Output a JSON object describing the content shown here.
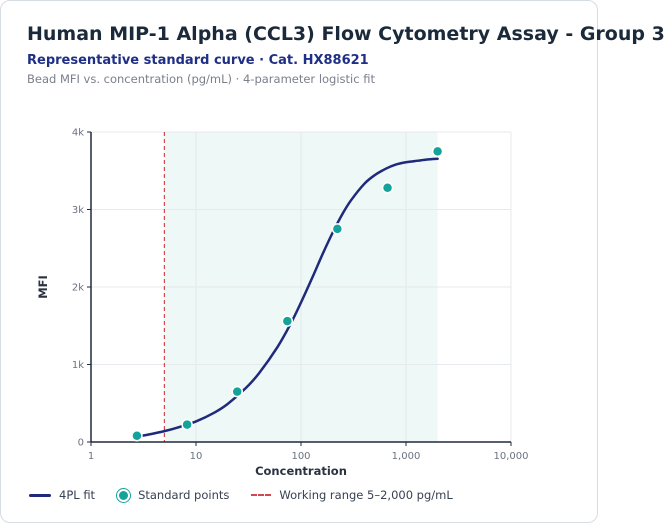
{
  "header": {
    "title": "Human MIP-1 Alpha (CCL3) Flow Cytometry Assay - Group 3",
    "subtitle": "Representative standard curve · Cat. HX88621",
    "caption": "Bead MFI vs. concentration (pg/mL) · 4-parameter logistic fit"
  },
  "colors": {
    "fit_line": "#1f2a7a",
    "points": "#14a39a",
    "working_range_marker": "#d2484e",
    "working_range_fill": "#e8f6f5"
  },
  "chart_data": {
    "type": "scatter",
    "xlabel": "Concentration",
    "ylabel": "MFI",
    "x_scale": "log",
    "xlim": [
      1,
      10000
    ],
    "ylim": [
      0,
      4000
    ],
    "x_ticks": [
      1,
      10,
      100,
      1000,
      10000
    ],
    "x_tick_labels": [
      "1",
      "10",
      "100",
      "1,000",
      "10,000"
    ],
    "y_ticks": [
      0,
      1000,
      2000,
      3000,
      4000
    ],
    "y_tick_labels": [
      "0",
      "1k",
      "2k",
      "3k",
      "4k"
    ],
    "grid": true,
    "legend_position": "bottom",
    "working_range": {
      "min": 5,
      "max": 2000
    },
    "series": [
      {
        "name": "4PL fit",
        "kind": "line",
        "x": [
          2.74,
          3.5,
          5,
          7,
          10,
          15,
          20,
          30,
          40,
          60,
          80,
          100,
          130,
          160,
          200,
          250,
          300,
          400,
          500,
          650,
          800,
          1000,
          1300,
          1600,
          2000
        ],
        "y": [
          70,
          95,
          140,
          195,
          265,
          380,
          490,
          700,
          890,
          1230,
          1530,
          1800,
          2140,
          2420,
          2700,
          2950,
          3120,
          3330,
          3440,
          3530,
          3580,
          3610,
          3630,
          3645,
          3655
        ]
      },
      {
        "name": "Standard points",
        "kind": "scatter",
        "x": [
          2.74,
          8.23,
          24.7,
          74.1,
          222,
          667,
          2000
        ],
        "y": [
          80,
          225,
          650,
          1560,
          2750,
          3280,
          3750
        ]
      }
    ]
  },
  "legend": {
    "fit_label": "4PL fit",
    "points_label": "Standard points",
    "range_label": "Working range 5–2,000 pg/mL"
  }
}
